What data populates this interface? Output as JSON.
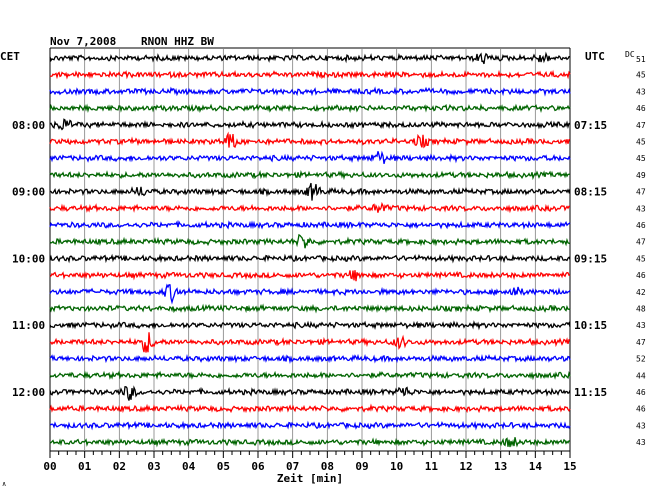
{
  "header": {
    "date": "Nov 7,2008",
    "station": "RNON HHZ BW",
    "left_zone": "CET",
    "right_zone": "UTC",
    "dc_label": "DC",
    "dc_first": "51"
  },
  "chart_data": {
    "type": "line",
    "xlabel": "Zeit [min]",
    "xlim": [
      0,
      15
    ],
    "x_ticks": [
      "00",
      "01",
      "02",
      "03",
      "04",
      "05",
      "06",
      "07",
      "08",
      "09",
      "10",
      "11",
      "12",
      "13",
      "14",
      "15"
    ],
    "trace_count": 24,
    "trace_colors": [
      "#000000",
      "#ff0000",
      "#0000ff",
      "#006400"
    ],
    "left_time_labels": [
      {
        "row": 4,
        "label": "08:00"
      },
      {
        "row": 8,
        "label": "09:00"
      },
      {
        "row": 12,
        "label": "10:00"
      },
      {
        "row": 16,
        "label": "11:00"
      },
      {
        "row": 20,
        "label": "12:00"
      }
    ],
    "right_time_labels": [
      {
        "row": 4,
        "label": "07:15"
      },
      {
        "row": 8,
        "label": "08:15"
      },
      {
        "row": 12,
        "label": "09:15"
      },
      {
        "row": 16,
        "label": "10:15"
      },
      {
        "row": 20,
        "label": "11:15"
      }
    ],
    "dc_offsets": [
      "45",
      "43",
      "46",
      "47",
      "45",
      "45",
      "49",
      "47",
      "43",
      "46",
      "47",
      "45",
      "46",
      "42",
      "48",
      "43",
      "47",
      "52",
      "44",
      "46",
      "46",
      "43",
      "43"
    ],
    "events": [
      {
        "row": 0,
        "minute": 12.5,
        "amp": 1.4
      },
      {
        "row": 0,
        "minute": 14.2,
        "amp": 1.2
      },
      {
        "row": 4,
        "minute": 0.4,
        "amp": 1.5
      },
      {
        "row": 5,
        "minute": 5.2,
        "amp": 2.2
      },
      {
        "row": 5,
        "minute": 10.7,
        "amp": 1.5
      },
      {
        "row": 6,
        "minute": 9.5,
        "amp": 1.8
      },
      {
        "row": 8,
        "minute": 7.6,
        "amp": 2.3
      },
      {
        "row": 8,
        "minute": 2.6,
        "amp": 1.2
      },
      {
        "row": 9,
        "minute": 9.5,
        "amp": 1.3
      },
      {
        "row": 11,
        "minute": 7.3,
        "amp": 2.0
      },
      {
        "row": 13,
        "minute": 8.8,
        "amp": 1.3
      },
      {
        "row": 14,
        "minute": 3.5,
        "amp": 2.4
      },
      {
        "row": 14,
        "minute": 13.4,
        "amp": 1.2
      },
      {
        "row": 17,
        "minute": 2.8,
        "amp": 3.0
      },
      {
        "row": 17,
        "minute": 10.1,
        "amp": 1.4
      },
      {
        "row": 20,
        "minute": 2.3,
        "amp": 2.0
      },
      {
        "row": 20,
        "minute": 10.2,
        "amp": 1.4
      },
      {
        "row": 23,
        "minute": 13.3,
        "amp": 1.3
      }
    ]
  }
}
